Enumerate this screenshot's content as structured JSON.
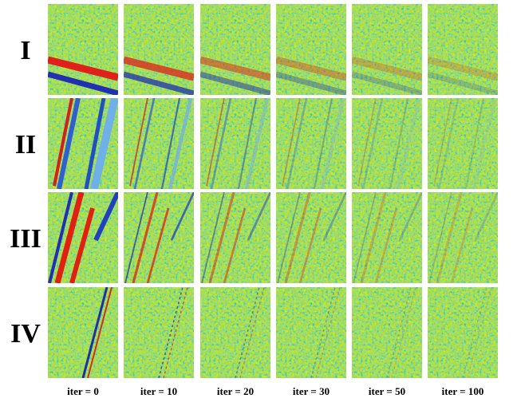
{
  "row_labels": [
    "I",
    "II",
    "III",
    "IV"
  ],
  "column_labels": [
    "iter = 0",
    "iter = 10",
    "iter = 20",
    "iter = 30",
    "iter = 50",
    "iter = 100"
  ]
}
